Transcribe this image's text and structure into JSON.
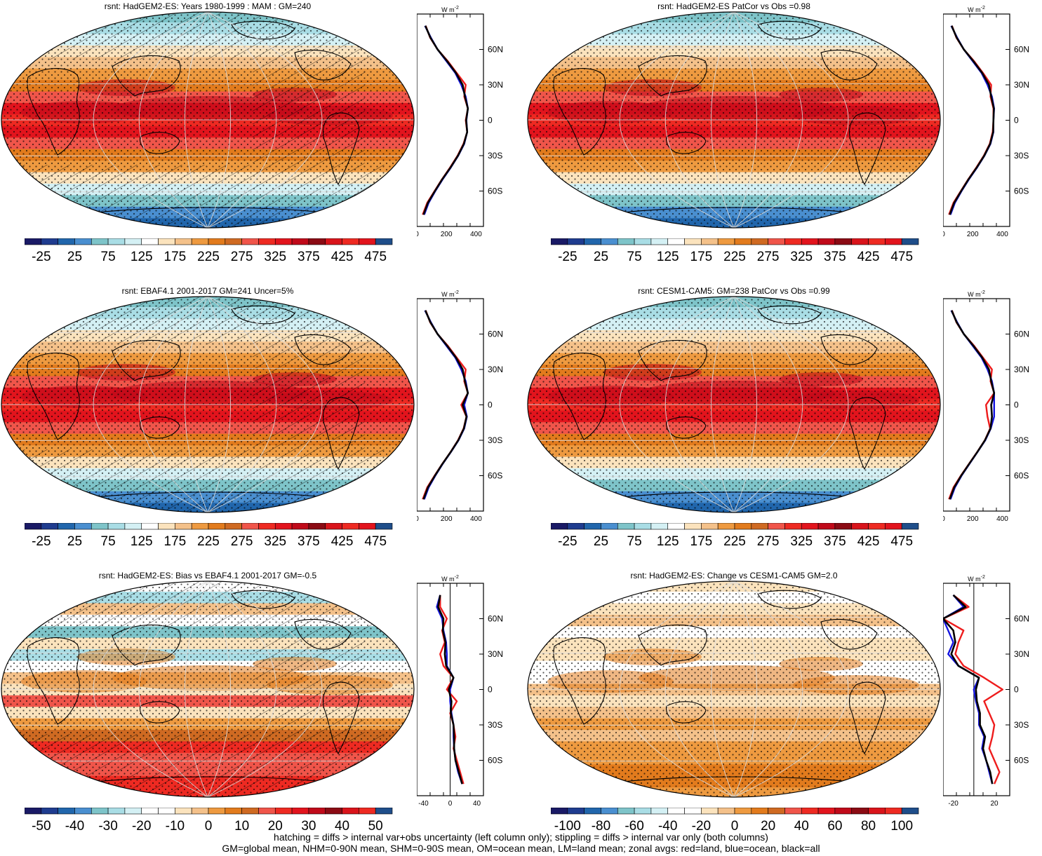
{
  "panels": [
    {
      "title": "rsnt: HadGEM2-ES: Years 1980-1999 : MAM : GM=240",
      "kind": "mean",
      "hatch": true,
      "colorbar": {
        "labels": [
          "-25",
          "25",
          "75",
          "125",
          "175",
          "225",
          "275",
          "325",
          "375",
          "425",
          "475"
        ]
      },
      "profile": {
        "unit": "W m",
        "unit_exp": "-2",
        "xticks": [
          "0",
          "200",
          "400"
        ],
        "xlim": [
          0,
          450
        ],
        "zero_line": false
      }
    },
    {
      "title": "rsnt: HadGEM2-ES PatCor vs Obs =0.98",
      "kind": "mean",
      "hatch": false,
      "colorbar": {
        "labels": [
          "-25",
          "25",
          "75",
          "125",
          "175",
          "225",
          "275",
          "325",
          "375",
          "425",
          "475"
        ]
      },
      "profile": {
        "unit": "W m",
        "unit_exp": "-2",
        "xticks": [
          "0",
          "200",
          "400"
        ],
        "xlim": [
          0,
          450
        ],
        "zero_line": false
      }
    },
    {
      "title": "rsnt: EBAF4.1 2001-2017 GM=241 Uncer=5%",
      "kind": "mean",
      "hatch": true,
      "colorbar": {
        "labels": [
          "-25",
          "25",
          "75",
          "125",
          "175",
          "225",
          "275",
          "325",
          "375",
          "425",
          "475"
        ]
      },
      "profile": {
        "unit": "W m",
        "unit_exp": "-2",
        "xticks": [
          "0",
          "200",
          "400"
        ],
        "xlim": [
          0,
          450
        ],
        "zero_line": false
      }
    },
    {
      "title": "rsnt: CESM1-CAM5: GM=238 PatCor vs Obs =0.99",
      "kind": "mean",
      "hatch": false,
      "colorbar": {
        "labels": [
          "-25",
          "25",
          "75",
          "125",
          "175",
          "225",
          "275",
          "325",
          "375",
          "425",
          "475"
        ]
      },
      "profile": {
        "unit": "W m",
        "unit_exp": "-2",
        "xticks": [
          "0",
          "200",
          "400"
        ],
        "xlim": [
          0,
          450
        ],
        "zero_line": false
      }
    },
    {
      "title": "rsnt: HadGEM2-ES: Bias vs EBAF4.1 2001-2017 GM=-0.5",
      "kind": "bias",
      "hatch": true,
      "colorbar": {
        "labels": [
          "-50",
          "-40",
          "-30",
          "-20",
          "-10",
          "0",
          "10",
          "20",
          "30",
          "40",
          "50"
        ]
      },
      "profile": {
        "unit": "W m",
        "unit_exp": "-2",
        "xticks": [
          "-40",
          "0",
          "40"
        ],
        "xlim": [
          -50,
          50
        ],
        "zero_line": true
      }
    },
    {
      "title": "rsnt: HadGEM2-ES: Change vs CESM1-CAM5 GM=2.0",
      "kind": "change",
      "hatch": false,
      "colorbar": {
        "labels": [
          "-100",
          "-80",
          "-60",
          "-40",
          "-20",
          "0",
          "20",
          "40",
          "60",
          "80",
          "100"
        ]
      },
      "profile": {
        "unit": "W m",
        "unit_exp": "-2",
        "xticks": [
          "-20",
          "20"
        ],
        "xlim": [
          -30,
          35
        ],
        "zero_line": true
      }
    }
  ],
  "lat_labels": [
    "60N",
    "30N",
    "0",
    "30S",
    "60S"
  ],
  "colors": {
    "mean_scale": [
      "#1a1a66",
      "#1f3c8f",
      "#2166ac",
      "#4a8fd0",
      "#7ec4c9",
      "#a9dde5",
      "#d4f0f4",
      "#ffffff",
      "#fbe3bd",
      "#f4c18a",
      "#ee9a40",
      "#e27b1d",
      "#cf6a22",
      "#f0554a",
      "#ee2a22",
      "#e2141d",
      "#c00a1a",
      "#8b0b14",
      "#d9141b",
      "#ee2a22",
      "#e2141d",
      "#1f4e8a"
    ],
    "diff_scale": [
      "#1a1a66",
      "#1f3c8f",
      "#2166ac",
      "#4a8fd0",
      "#7ec4c9",
      "#a9dde5",
      "#d4f0f4",
      "#ffffff",
      "#ffffff",
      "#fbe3bd",
      "#f4c18a",
      "#ee9a40",
      "#e27b1d",
      "#cf6a22",
      "#f0554a",
      "#ee2a22",
      "#e2141d",
      "#c00a1a",
      "#8b0b14",
      "#d9141b",
      "#ee2a22",
      "#1f4e8a"
    ],
    "land": "#ee1c1c",
    "ocean": "#1515e0",
    "all": "#000000"
  },
  "chart_data": [
    {
      "type": "line",
      "panel": "HadGEM2-ES mean zonal average",
      "lat": [
        -80,
        -70,
        -60,
        -50,
        -40,
        -30,
        -20,
        -10,
        0,
        10,
        20,
        30,
        40,
        50,
        60,
        70,
        80
      ],
      "xlim": [
        0,
        450
      ],
      "series": [
        {
          "name": "land",
          "values": [
            40,
            70,
            120,
            170,
            225,
            275,
            315,
            340,
            330,
            345,
            320,
            330,
            270,
            210,
            140,
            90,
            60
          ]
        },
        {
          "name": "ocean",
          "values": [
            50,
            80,
            125,
            175,
            230,
            280,
            320,
            340,
            335,
            345,
            330,
            300,
            260,
            200,
            140,
            95,
            55
          ]
        },
        {
          "name": "all",
          "values": [
            45,
            75,
            122,
            172,
            228,
            278,
            318,
            340,
            333,
            345,
            325,
            310,
            265,
            205,
            140,
            92,
            58
          ]
        }
      ]
    },
    {
      "type": "line",
      "panel": "HadGEM2-ES PatCor zonal average",
      "lat": [
        -80,
        -70,
        -60,
        -50,
        -40,
        -30,
        -20,
        -10,
        0,
        10,
        20,
        30,
        40,
        50,
        60,
        70,
        80
      ],
      "xlim": [
        0,
        450
      ],
      "series": [
        {
          "name": "land",
          "values": [
            40,
            70,
            120,
            170,
            225,
            275,
            315,
            335,
            340,
            340,
            320,
            325,
            270,
            210,
            140,
            90,
            60
          ]
        },
        {
          "name": "ocean",
          "values": [
            50,
            80,
            125,
            175,
            230,
            280,
            320,
            340,
            340,
            345,
            330,
            300,
            260,
            200,
            140,
            95,
            55
          ]
        },
        {
          "name": "all",
          "values": [
            45,
            75,
            122,
            172,
            228,
            278,
            318,
            338,
            340,
            343,
            325,
            310,
            265,
            205,
            140,
            92,
            58
          ]
        }
      ]
    },
    {
      "type": "line",
      "panel": "EBAF4.1 zonal average",
      "lat": [
        -80,
        -70,
        -60,
        -50,
        -40,
        -30,
        -20,
        -10,
        0,
        10,
        20,
        30,
        40,
        50,
        60,
        70,
        80
      ],
      "xlim": [
        0,
        450
      ],
      "series": [
        {
          "name": "land",
          "values": [
            40,
            70,
            120,
            172,
            228,
            278,
            316,
            335,
            300,
            345,
            320,
            330,
            270,
            210,
            140,
            90,
            60
          ]
        },
        {
          "name": "ocean",
          "values": [
            50,
            80,
            125,
            175,
            230,
            282,
            320,
            338,
            320,
            345,
            330,
            300,
            260,
            200,
            140,
            95,
            55
          ]
        },
        {
          "name": "all",
          "values": [
            45,
            75,
            122,
            173,
            229,
            280,
            318,
            336,
            310,
            345,
            325,
            310,
            265,
            205,
            140,
            92,
            58
          ]
        }
      ]
    },
    {
      "type": "line",
      "panel": "CESM1-CAM5 zonal average",
      "lat": [
        -80,
        -70,
        -60,
        -50,
        -40,
        -30,
        -20,
        -10,
        0,
        10,
        20,
        30,
        40,
        50,
        60,
        70,
        80
      ],
      "xlim": [
        0,
        450
      ],
      "series": [
        {
          "name": "land",
          "values": [
            40,
            70,
            120,
            175,
            230,
            282,
            318,
            300,
            290,
            345,
            320,
            330,
            270,
            210,
            140,
            90,
            60
          ]
        },
        {
          "name": "ocean",
          "values": [
            50,
            80,
            125,
            178,
            232,
            285,
            322,
            345,
            345,
            345,
            330,
            300,
            260,
            200,
            140,
            95,
            55
          ]
        },
        {
          "name": "all",
          "values": [
            45,
            75,
            122,
            176,
            231,
            283,
            320,
            330,
            325,
            345,
            325,
            310,
            265,
            205,
            140,
            92,
            58
          ]
        }
      ]
    },
    {
      "type": "line",
      "panel": "HadGEM2-ES bias zonal average",
      "lat": [
        -80,
        -70,
        -60,
        -50,
        -40,
        -30,
        -20,
        -10,
        0,
        10,
        20,
        30,
        40,
        50,
        60,
        70,
        80
      ],
      "xlim": [
        -50,
        50
      ],
      "series": [
        {
          "name": "land",
          "values": [
            20,
            15,
            10,
            5,
            8,
            5,
            0,
            10,
            -5,
            5,
            -10,
            -15,
            -8,
            -12,
            -5,
            -15,
            -15
          ]
        },
        {
          "name": "ocean",
          "values": [
            18,
            12,
            8,
            6,
            5,
            5,
            2,
            0,
            0,
            5,
            -5,
            -5,
            -6,
            -10,
            -12,
            -20,
            -15
          ]
        },
        {
          "name": "all",
          "values": [
            18,
            13,
            8,
            6,
            6,
            5,
            1,
            2,
            -2,
            5,
            -6,
            -8,
            -7,
            -11,
            -10,
            -18,
            -15
          ]
        }
      ]
    },
    {
      "type": "line",
      "panel": "HadGEM2-ES change zonal average",
      "lat": [
        -80,
        -70,
        -60,
        -50,
        -40,
        -30,
        -20,
        -10,
        0,
        10,
        20,
        30,
        40,
        50,
        60,
        70,
        80
      ],
      "xlim": [
        -30,
        35
      ],
      "series": [
        {
          "name": "land",
          "values": [
            20,
            25,
            20,
            15,
            18,
            20,
            15,
            10,
            28,
            10,
            -10,
            -18,
            -15,
            -10,
            -30,
            -5,
            -20
          ]
        },
        {
          "name": "ocean",
          "values": [
            18,
            15,
            12,
            8,
            10,
            5,
            5,
            2,
            0,
            5,
            -15,
            -25,
            -20,
            -25,
            -30,
            -10,
            -20
          ]
        },
        {
          "name": "all",
          "values": [
            18,
            16,
            12,
            9,
            11,
            6,
            6,
            3,
            2,
            5,
            -15,
            -22,
            -18,
            -20,
            -30,
            -8,
            -20
          ]
        }
      ]
    }
  ],
  "footer": {
    "line1": "hatching = diffs > internal var+obs uncertainty (left column only); stippling = diffs > internal var only (both columns)",
    "line2": "GM=global mean, NHM=0-90N mean, SHM=0-90S mean, OM=ocean mean, LM=land mean; zonal avgs: red=land, blue=ocean, black=all"
  }
}
